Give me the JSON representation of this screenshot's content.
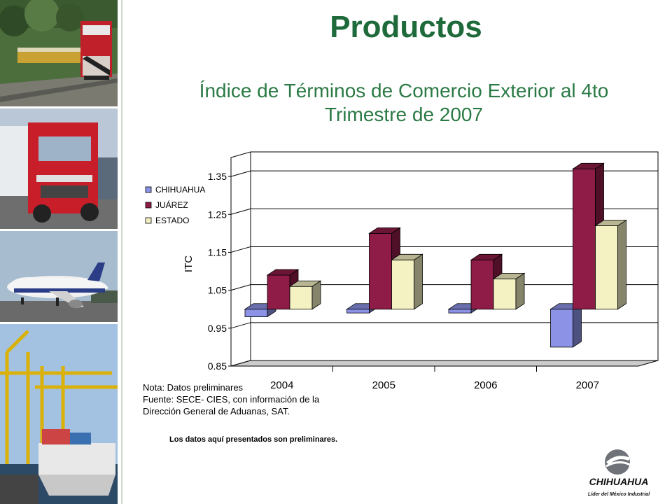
{
  "slide": {
    "title": "Productos",
    "subtitle_line1": "Índice de Términos de Comercio Exterior al 4to",
    "subtitle_line2": "Trimestre de 2007"
  },
  "notes": {
    "line1": "Nota: Datos preliminares",
    "line2": "Fuente: SECE- CIES, con información de la",
    "line3": "Dirección General de Aduanas, SAT."
  },
  "footnote": "Los datos aquí presentados son preliminares.",
  "logo": {
    "name": "CHIHUAHUA",
    "tagline": "Líder del México Industrial"
  },
  "colors": {
    "title": "#1f6a3a",
    "chihuahua": "#8c93e6",
    "juarez": "#8e1c47",
    "estado": "#f4f1c2",
    "floor": "#cccccc"
  },
  "chart_data": {
    "type": "bar",
    "ylabel": "ITC",
    "categories": [
      "2004",
      "2005",
      "2006",
      "2007"
    ],
    "baseline": 1.0,
    "ylim": [
      0.85,
      1.4
    ],
    "yticks": [
      "1.35",
      "1.25",
      "1.15",
      "1.05",
      "0.95",
      "0.85"
    ],
    "legend_position": "left",
    "grid": true,
    "series": [
      {
        "name": "CHIHUAHUA",
        "values": [
          0.98,
          0.99,
          0.99,
          0.9
        ]
      },
      {
        "name": "JUÁREZ",
        "values": [
          1.09,
          1.2,
          1.13,
          1.37
        ]
      },
      {
        "name": "ESTADO",
        "values": [
          1.06,
          1.13,
          1.08,
          1.22
        ]
      }
    ]
  }
}
